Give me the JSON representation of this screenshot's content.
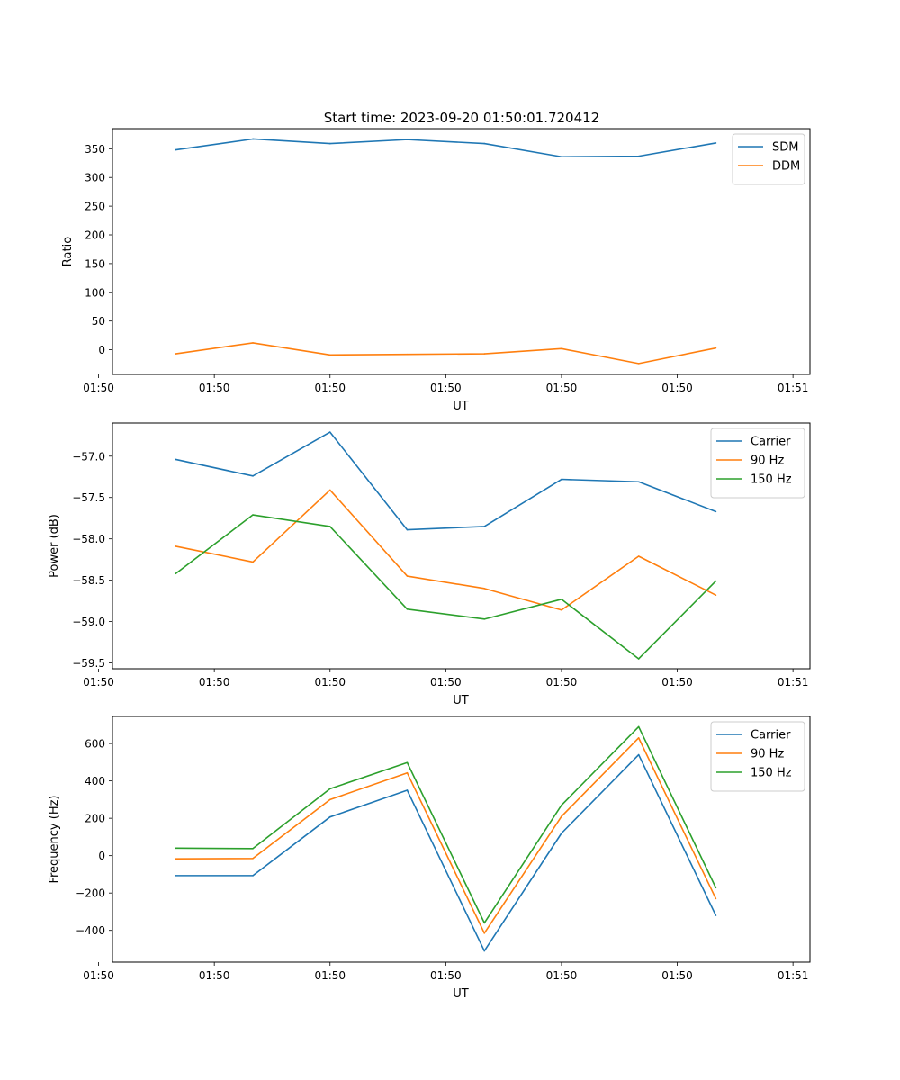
{
  "figure": {
    "title": "Start time: 2023-09-20 01:50:01.720412"
  },
  "chart_data": [
    {
      "type": "line",
      "title": "Start time: 2023-09-20 01:50:01.720412",
      "xlabel": "UT",
      "ylabel": "Ratio",
      "x": [
        1,
        2,
        3,
        4,
        5,
        6,
        7,
        8
      ],
      "xlim": [
        0.18,
        9.22
      ],
      "x_ticks": [
        0,
        1.5,
        3,
        4.5,
        6,
        7.5,
        9
      ],
      "x_tick_labels": [
        "01:50",
        "01:50",
        "01:50",
        "01:50",
        "01:50",
        "01:50",
        "01:51"
      ],
      "ylim": [
        -43,
        385
      ],
      "y_ticks": [
        0,
        50,
        100,
        150,
        200,
        250,
        300,
        350
      ],
      "y_tick_labels": [
        "0",
        "50",
        "100",
        "150",
        "200",
        "250",
        "300",
        "350"
      ],
      "legend_position": "top-right",
      "series": [
        {
          "name": "SDM",
          "color": "#1f77b4",
          "values": [
            348,
            367,
            359,
            366,
            359,
            336,
            337,
            360
          ]
        },
        {
          "name": "DDM",
          "color": "#ff7f0e",
          "values": [
            -7,
            12,
            -9,
            -8,
            -7,
            2,
            -24,
            3
          ]
        }
      ]
    },
    {
      "type": "line",
      "title": "",
      "xlabel": "UT",
      "ylabel": "Power (dB)",
      "x": [
        1,
        2,
        3,
        4,
        5,
        6,
        7,
        8
      ],
      "xlim": [
        0.18,
        9.22
      ],
      "x_ticks": [
        0,
        1.5,
        3,
        4.5,
        6,
        7.5,
        9
      ],
      "x_tick_labels": [
        "01:50",
        "01:50",
        "01:50",
        "01:50",
        "01:50",
        "01:50",
        "01:51"
      ],
      "ylim": [
        -59.57,
        -56.6
      ],
      "y_ticks": [
        -57.0,
        -57.5,
        -58.0,
        -58.5,
        -59.0,
        -59.5
      ],
      "y_tick_labels": [
        "−57.0",
        "−57.5",
        "−58.0",
        "−58.5",
        "−59.0",
        "−59.5"
      ],
      "legend_position": "top-right",
      "series": [
        {
          "name": "Carrier",
          "color": "#1f77b4",
          "values": [
            -57.04,
            -57.24,
            -56.71,
            -57.89,
            -57.85,
            -57.28,
            -57.31,
            -57.67
          ]
        },
        {
          "name": "90 Hz",
          "color": "#ff7f0e",
          "values": [
            -58.09,
            -58.28,
            -57.41,
            -58.45,
            -58.6,
            -58.86,
            -58.21,
            -58.68
          ]
        },
        {
          "name": "150 Hz",
          "color": "#2ca02c",
          "values": [
            -58.42,
            -57.71,
            -57.85,
            -58.85,
            -58.97,
            -58.73,
            -59.45,
            -58.51
          ]
        }
      ]
    },
    {
      "type": "line",
      "title": "",
      "xlabel": "UT",
      "ylabel": "Frequency (Hz)",
      "x": [
        1,
        2,
        3,
        4,
        5,
        6,
        7,
        8
      ],
      "xlim": [
        0.18,
        9.22
      ],
      "x_ticks": [
        0,
        1.5,
        3,
        4.5,
        6,
        7.5,
        9
      ],
      "x_tick_labels": [
        "01:50",
        "01:50",
        "01:50",
        "01:50",
        "01:50",
        "01:50",
        "01:51"
      ],
      "ylim": [
        -570,
        745
      ],
      "y_ticks": [
        -400,
        -200,
        0,
        200,
        400,
        600
      ],
      "y_tick_labels": [
        "−400",
        "−200",
        "0",
        "200",
        "400",
        "600"
      ],
      "legend_position": "top-right",
      "series": [
        {
          "name": "Carrier",
          "color": "#1f77b4",
          "values": [
            -107,
            -107,
            207,
            350,
            -510,
            120,
            540,
            -320
          ]
        },
        {
          "name": "90 Hz",
          "color": "#ff7f0e",
          "values": [
            -17,
            -15,
            300,
            443,
            -415,
            210,
            630,
            -230
          ]
        },
        {
          "name": "150 Hz",
          "color": "#2ca02c",
          "values": [
            40,
            38,
            358,
            498,
            -360,
            270,
            690,
            -172
          ]
        }
      ]
    }
  ]
}
